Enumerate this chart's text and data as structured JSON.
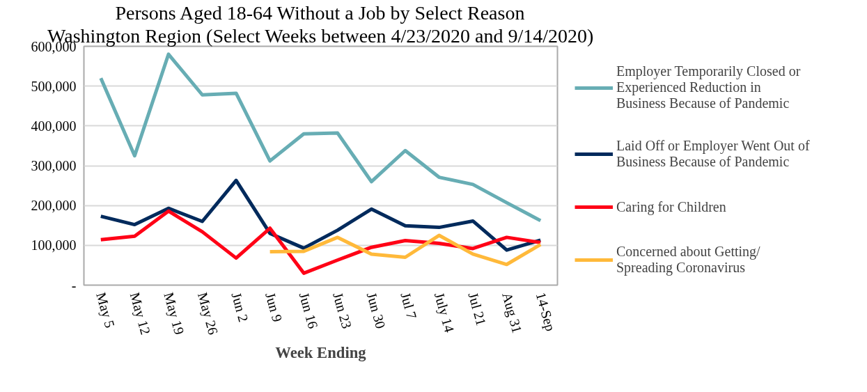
{
  "chart_data": {
    "type": "line",
    "title": "Persons Aged 18-64 Without a Job by Select Reason",
    "subtitle": "Washington Region (Select Weeks between 4/23/2020 and 9/14/2020)",
    "xlabel": "Week Ending",
    "categories": [
      "May 5",
      "May 12",
      "May 19",
      "May 26",
      "Jun 2",
      "Jun 9",
      "Jun 16",
      "Jun 23",
      "Jun 30",
      "Jul 7",
      "July 14",
      "Jul 21",
      "Aug 31",
      "14-Sep"
    ],
    "ylim": [
      0,
      600000
    ],
    "yticks": [
      {
        "value": 0,
        "label": "-"
      },
      {
        "value": 100000,
        "label": "100,000"
      },
      {
        "value": 200000,
        "label": "200,000"
      },
      {
        "value": 300000,
        "label": "300,000"
      },
      {
        "value": 400000,
        "label": "400,000"
      },
      {
        "value": 500000,
        "label": "500,000"
      },
      {
        "value": 600000,
        "label": "600,000"
      }
    ],
    "grid": "y",
    "legend": "right",
    "marker": "none",
    "line_style": "solid",
    "series": [
      {
        "name": "Employer Temporarily Closed or Experienced Reduction in Business Because of Pandemic",
        "color": "#67adb4",
        "values": [
          520000,
          325000,
          580000,
          478000,
          482000,
          312000,
          380000,
          382000,
          260000,
          338000,
          271000,
          253000,
          207000,
          162000
        ]
      },
      {
        "name": "Laid Off or Employer Went Out of Business Because of Pandemic",
        "color": "#002a5c",
        "values": [
          173000,
          152000,
          193000,
          160000,
          263000,
          130000,
          93000,
          138000,
          191000,
          149000,
          145000,
          161000,
          88000,
          113000
        ]
      },
      {
        "name": "Caring for Children",
        "color": "#ff0016",
        "values": [
          114000,
          123000,
          186000,
          134000,
          68000,
          143000,
          30000,
          63000,
          95000,
          112000,
          105000,
          92000,
          120000,
          107000
        ]
      },
      {
        "name": "Concerned about Getting/ Spreading Coronavirus",
        "color": "#ffb93a",
        "values": [
          null,
          null,
          null,
          null,
          null,
          84000,
          85000,
          120000,
          78000,
          70000,
          125000,
          78000,
          52000,
          102000
        ]
      }
    ]
  }
}
